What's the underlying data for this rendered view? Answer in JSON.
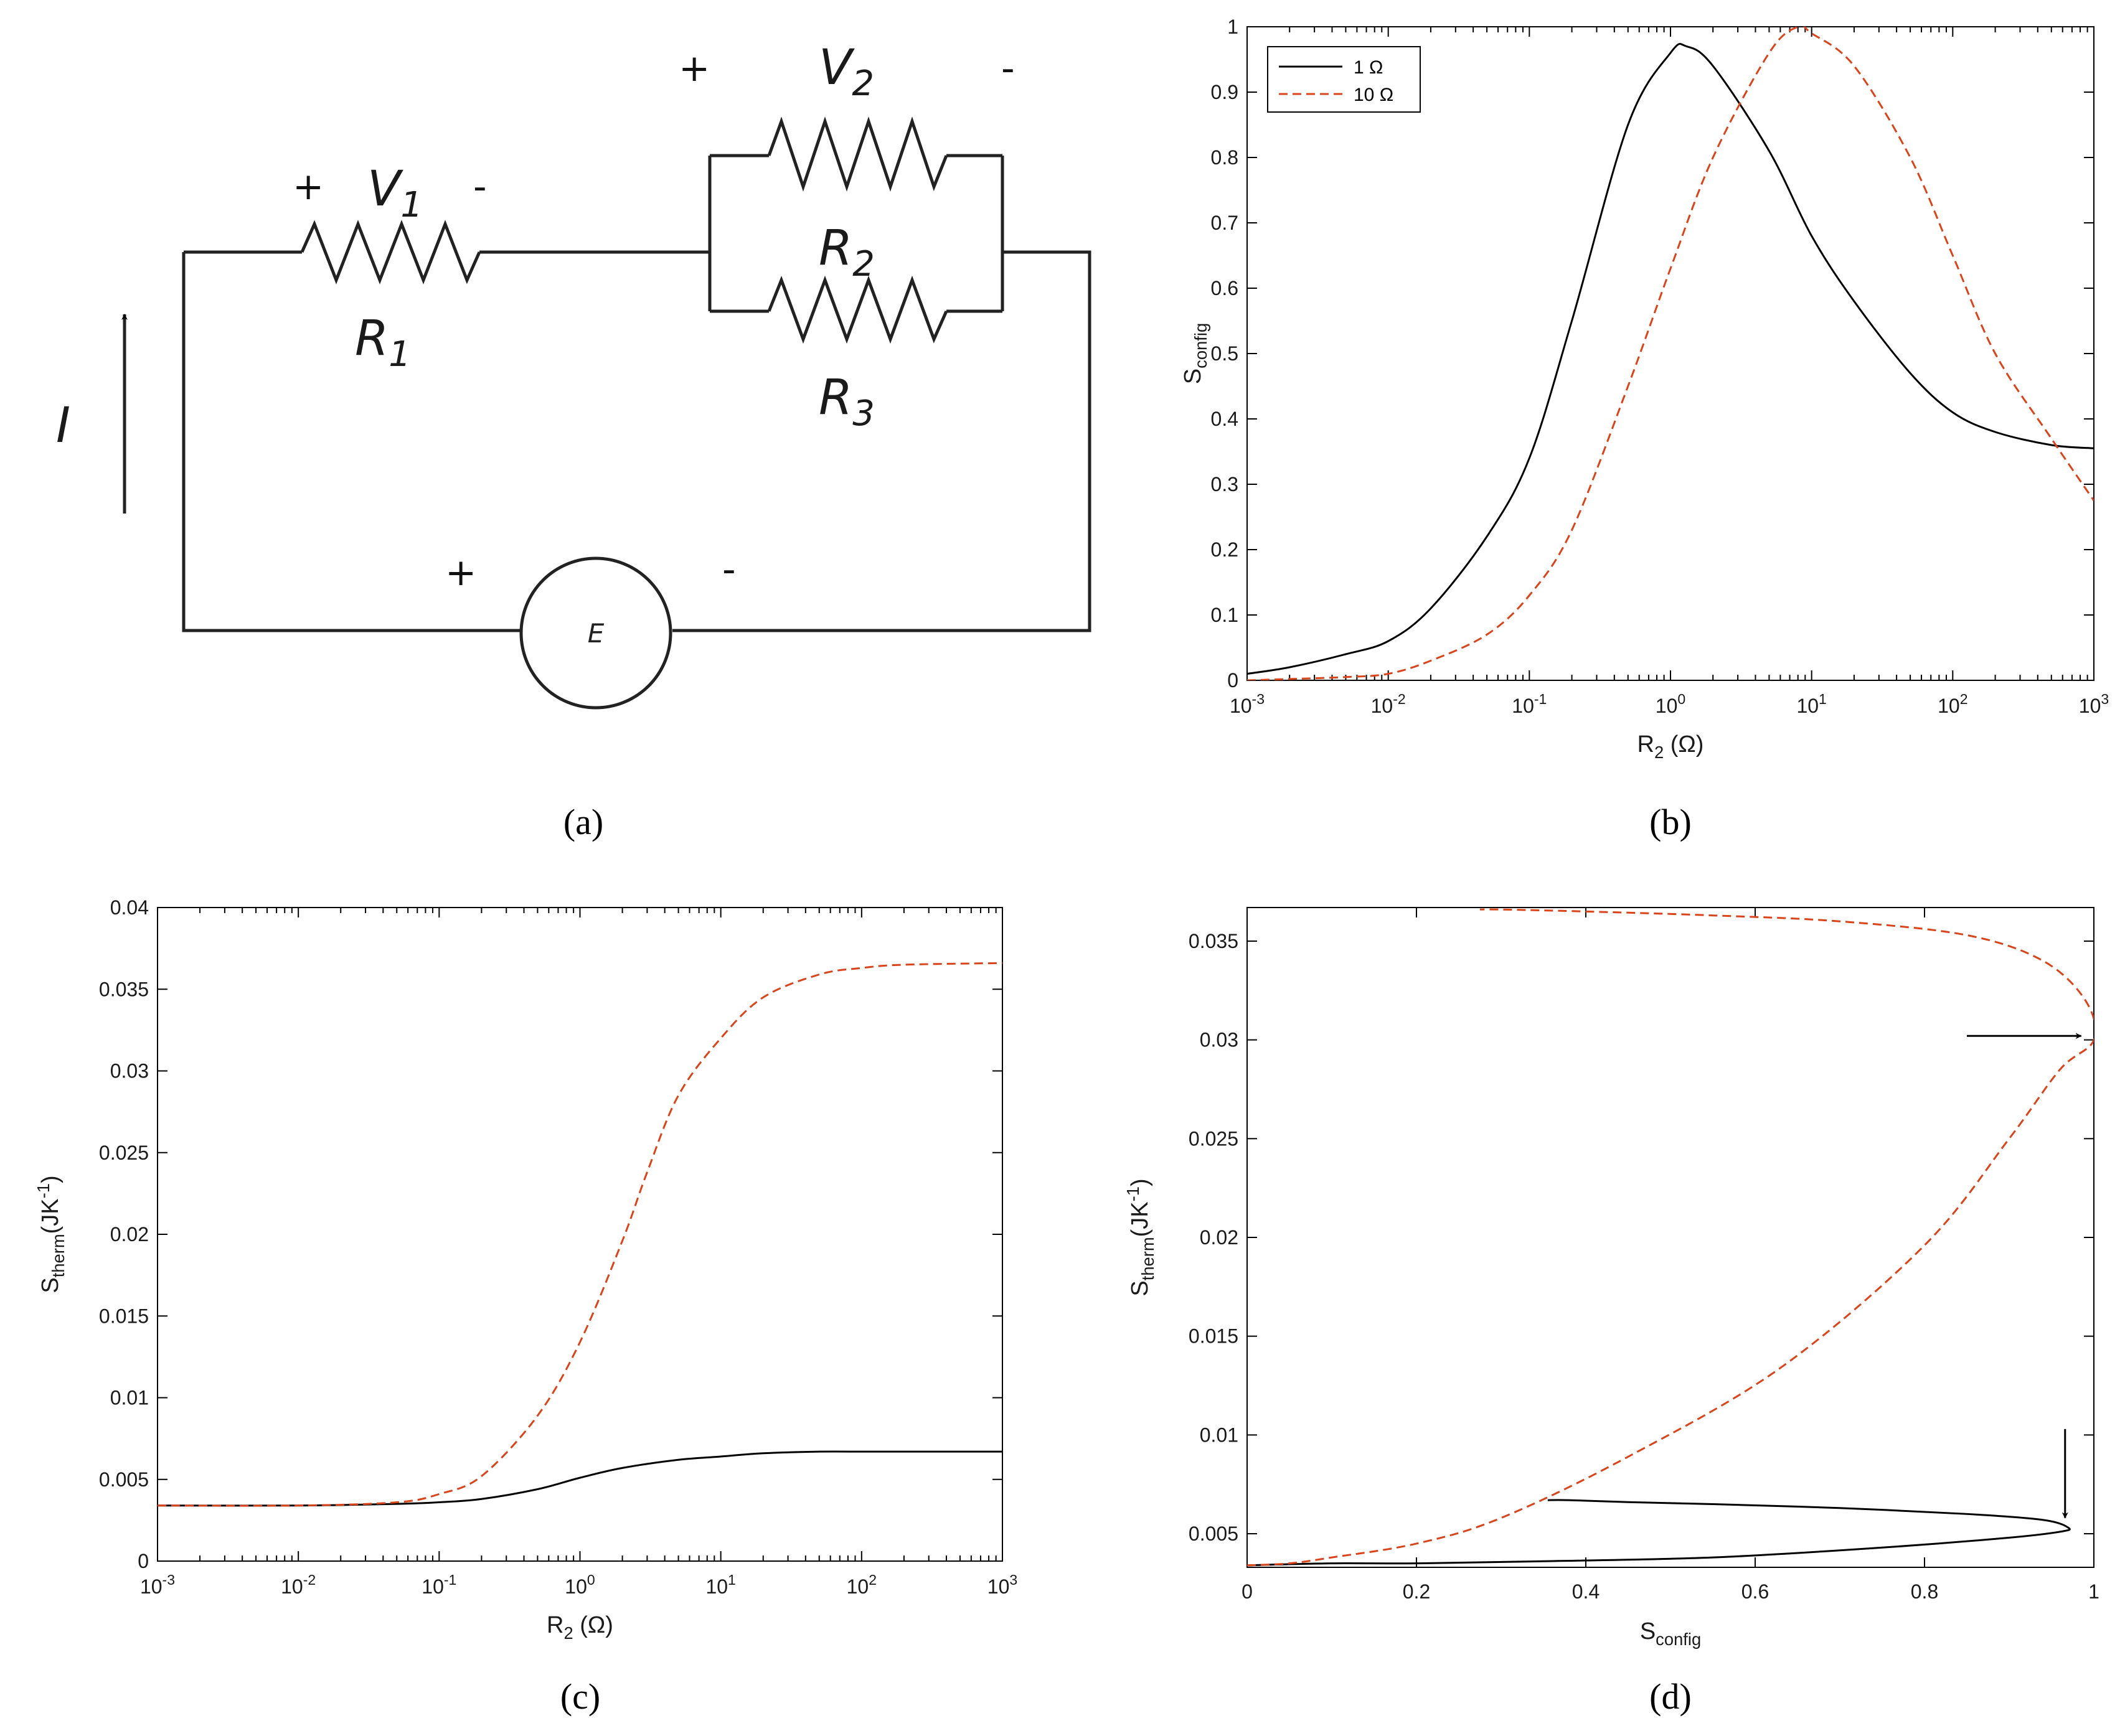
{
  "circuit": {
    "panel_label": "(a)",
    "v1_label": "V",
    "v1_sub": "1",
    "v2_label": "V",
    "v2_sub": "2",
    "r1_label": "R",
    "r1_sub": "1",
    "r2_label": "R",
    "r2_sub": "2",
    "r3_label": "R",
    "r3_sub": "3",
    "current_label": "I",
    "source_label": "E",
    "plus": "+",
    "minus": "-"
  },
  "colors": {
    "series_1ohm": "#000000",
    "series_10ohm": "#d9441a"
  },
  "chart_data": [
    {
      "panel": "(b)",
      "type": "line",
      "xscale": "log",
      "xlim": [
        0.001,
        1000
      ],
      "ylim": [
        0,
        1
      ],
      "xlabel": "R",
      "xlabel_sub": "2",
      "xlabel_unit": " (Ω)",
      "ylabel": "S",
      "ylabel_sub": "config",
      "xticks": [
        0.001,
        0.01,
        0.1,
        1,
        10,
        100,
        1000
      ],
      "xtick_labels": [
        [
          "10",
          "-3"
        ],
        [
          "10",
          "-2"
        ],
        [
          "10",
          "-1"
        ],
        [
          "10",
          "0"
        ],
        [
          "10",
          "1"
        ],
        [
          "10",
          "2"
        ],
        [
          "10",
          "3"
        ]
      ],
      "yticks": [
        0,
        0.1,
        0.2,
        0.3,
        0.4,
        0.5,
        0.6,
        0.7,
        0.8,
        0.9,
        1
      ],
      "ytick_labels": [
        "0",
        "0.1",
        "0.2",
        "0.3",
        "0.4",
        "0.5",
        "0.6",
        "0.7",
        "0.8",
        "0.9",
        "1"
      ],
      "legend": {
        "position": "top-left",
        "entries": [
          "1 Ω",
          "10 Ω"
        ]
      },
      "series": [
        {
          "name": "1 Ω",
          "style": "solid",
          "x": [
            0.001,
            0.002,
            0.005,
            0.01,
            0.02,
            0.05,
            0.1,
            0.2,
            0.5,
            1,
            1.3,
            2,
            5,
            10,
            20,
            50,
            100,
            200,
            500,
            1000
          ],
          "y": [
            0.01,
            0.02,
            0.04,
            0.06,
            0.11,
            0.22,
            0.34,
            0.55,
            0.85,
            0.96,
            0.97,
            0.94,
            0.81,
            0.68,
            0.58,
            0.47,
            0.41,
            0.38,
            0.36,
            0.355
          ]
        },
        {
          "name": "10 Ω",
          "style": "dashed",
          "x": [
            0.001,
            0.002,
            0.005,
            0.01,
            0.02,
            0.05,
            0.1,
            0.2,
            0.5,
            1,
            2,
            5,
            8,
            10,
            20,
            50,
            100,
            200,
            500,
            1000
          ],
          "y": [
            0.0,
            0.002,
            0.005,
            0.01,
            0.03,
            0.07,
            0.13,
            0.23,
            0.45,
            0.63,
            0.8,
            0.96,
            1.0,
            0.99,
            0.94,
            0.8,
            0.65,
            0.5,
            0.37,
            0.275
          ]
        }
      ]
    },
    {
      "panel": "(c)",
      "type": "line",
      "xscale": "log",
      "xlim": [
        0.001,
        1000
      ],
      "ylim": [
        0,
        0.04
      ],
      "xlabel": "R",
      "xlabel_sub": "2",
      "xlabel_unit": " (Ω)",
      "ylabel": "S",
      "ylabel_sub": "therm",
      "ylabel_unit": "(JK",
      "ylabel_sup": "-1",
      "ylabel_close": ")",
      "xticks": [
        0.001,
        0.01,
        0.1,
        1,
        10,
        100,
        1000
      ],
      "xtick_labels": [
        [
          "10",
          "-3"
        ],
        [
          "10",
          "-2"
        ],
        [
          "10",
          "-1"
        ],
        [
          "10",
          "0"
        ],
        [
          "10",
          "1"
        ],
        [
          "10",
          "2"
        ],
        [
          "10",
          "3"
        ]
      ],
      "yticks": [
        0,
        0.005,
        0.01,
        0.015,
        0.02,
        0.025,
        0.03,
        0.035,
        0.04
      ],
      "ytick_labels": [
        "0",
        "0.005",
        "0.01",
        "0.015",
        "0.02",
        "0.025",
        "0.03",
        "0.035",
        "0.04"
      ],
      "series": [
        {
          "name": "1 Ω",
          "style": "solid",
          "x": [
            0.001,
            0.01,
            0.05,
            0.1,
            0.2,
            0.5,
            1,
            2,
            5,
            10,
            20,
            50,
            100,
            1000
          ],
          "y": [
            0.0034,
            0.0034,
            0.0035,
            0.0036,
            0.0038,
            0.0044,
            0.0051,
            0.0057,
            0.0062,
            0.0064,
            0.0066,
            0.0067,
            0.0067,
            0.0067
          ]
        },
        {
          "name": "10 Ω",
          "style": "dashed",
          "x": [
            0.001,
            0.01,
            0.05,
            0.1,
            0.2,
            0.5,
            1,
            2,
            3,
            5,
            10,
            20,
            50,
            100,
            200,
            1000
          ],
          "y": [
            0.0034,
            0.0034,
            0.0036,
            0.0041,
            0.0052,
            0.0089,
            0.0134,
            0.0196,
            0.0238,
            0.0285,
            0.032,
            0.0345,
            0.0359,
            0.0363,
            0.0365,
            0.0366
          ]
        }
      ]
    },
    {
      "panel": "(d)",
      "type": "line",
      "xscale": "linear",
      "xlim": [
        0,
        1
      ],
      "ylim": [
        0.0033,
        0.0367
      ],
      "xlabel": "S",
      "xlabel_sub": "config",
      "ylabel": "S",
      "ylabel_sub": "therm",
      "ylabel_unit": "(JK",
      "ylabel_sup": "-1",
      "ylabel_close": ")",
      "xticks": [
        0,
        0.2,
        0.4,
        0.6,
        0.8,
        1
      ],
      "xtick_labels": [
        "0",
        "0.2",
        "0.4",
        "0.6",
        "0.8",
        "1"
      ],
      "yticks": [
        0.005,
        0.01,
        0.015,
        0.02,
        0.025,
        0.03,
        0.035
      ],
      "ytick_labels": [
        "0.005",
        "0.01",
        "0.015",
        "0.02",
        "0.025",
        "0.03",
        "0.035"
      ],
      "series": [
        {
          "name": "1 Ω",
          "style": "solid",
          "x": [
            0.0,
            0.1,
            0.2,
            0.34,
            0.55,
            0.75,
            0.9,
            0.96,
            0.97,
            0.94,
            0.85,
            0.7,
            0.55,
            0.45,
            0.38,
            0.355
          ],
          "y": [
            0.0034,
            0.0035,
            0.0035,
            0.0036,
            0.0038,
            0.0043,
            0.0048,
            0.0051,
            0.0053,
            0.0057,
            0.006,
            0.0063,
            0.0065,
            0.0066,
            0.0067,
            0.0067
          ]
        },
        {
          "name": "10 Ω",
          "style": "dashed",
          "x": [
            0.0,
            0.05,
            0.1,
            0.2,
            0.3,
            0.45,
            0.63,
            0.8,
            0.9,
            0.96,
            1.0,
            0.99,
            0.94,
            0.85,
            0.7,
            0.55,
            0.4,
            0.3,
            0.275
          ],
          "y": [
            0.0034,
            0.0035,
            0.0038,
            0.0045,
            0.0058,
            0.0089,
            0.0134,
            0.0196,
            0.025,
            0.0285,
            0.03,
            0.032,
            0.034,
            0.0353,
            0.036,
            0.0363,
            0.0365,
            0.0366,
            0.0366
          ]
        }
      ],
      "arrows": [
        {
          "x_from": 0.85,
          "y_from": 0.0302,
          "x_to": 0.985,
          "y_to": 0.0302
        },
        {
          "x_from": 0.966,
          "y_from": 0.0103,
          "x_to": 0.966,
          "y_to": 0.0058
        }
      ]
    }
  ]
}
